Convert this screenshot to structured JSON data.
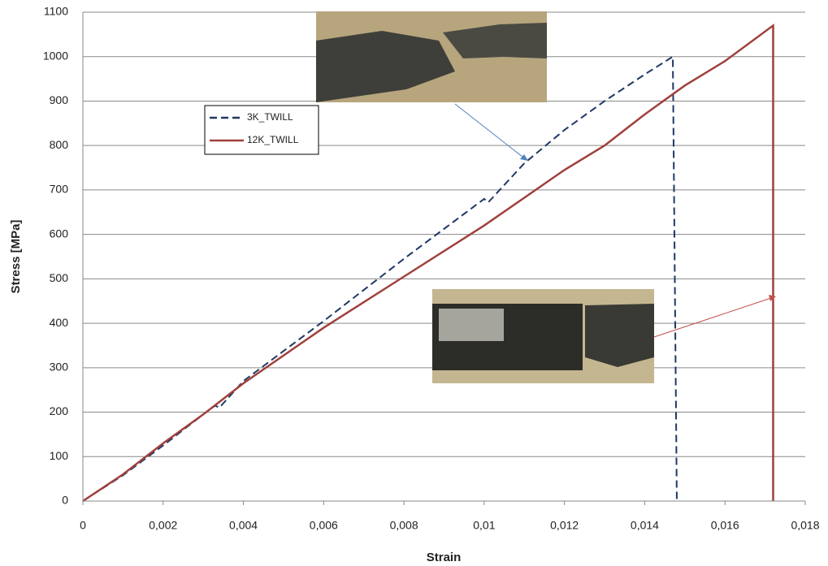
{
  "chart_data": {
    "type": "line",
    "xlabel": "Strain",
    "ylabel": "Stress [MPa]",
    "xlim": [
      0,
      0.018
    ],
    "ylim": [
      0,
      1100
    ],
    "xticks": [
      0,
      {
        "value": 0.002,
        "label": "0,002"
      },
      {
        "value": 0.004,
        "label": "0,004"
      },
      {
        "value": 0.006,
        "label": "0,006"
      },
      {
        "value": 0.008,
        "label": "0,008"
      },
      {
        "value": 0.01,
        "label": "0,01"
      },
      {
        "value": 0.012,
        "label": "0,012"
      },
      {
        "value": 0.014,
        "label": "0,014"
      },
      {
        "value": 0.016,
        "label": "0,016"
      },
      {
        "value": 0.018,
        "label": "0,018"
      }
    ],
    "yticks": [
      0,
      100,
      200,
      300,
      400,
      500,
      600,
      700,
      800,
      900,
      1000,
      1100
    ],
    "grid": true,
    "series": [
      {
        "name": "3K_TWILL",
        "color": "#1f3864",
        "dash": "dashed",
        "x": [
          0,
          0.001,
          0.002,
          0.003,
          0.0033,
          0.0034,
          0.004,
          0.006,
          0.008,
          0.01,
          0.0101,
          0.011,
          0.012,
          0.013,
          0.014,
          0.0147,
          0.0148
        ],
        "values": [
          0,
          58,
          125,
          195,
          215,
          210,
          270,
          405,
          545,
          680,
          672,
          760,
          835,
          900,
          960,
          1000,
          0
        ]
      },
      {
        "name": "12K_TWILL",
        "color": "#a0403c",
        "dash": "solid",
        "x": [
          0,
          0.001,
          0.002,
          0.003,
          0.004,
          0.006,
          0.008,
          0.01,
          0.012,
          0.013,
          0.014,
          0.015,
          0.016,
          0.0172,
          0.0172
        ],
        "values": [
          0,
          60,
          130,
          195,
          265,
          390,
          505,
          620,
          745,
          800,
          870,
          935,
          990,
          1070,
          0
        ]
      }
    ]
  }
}
